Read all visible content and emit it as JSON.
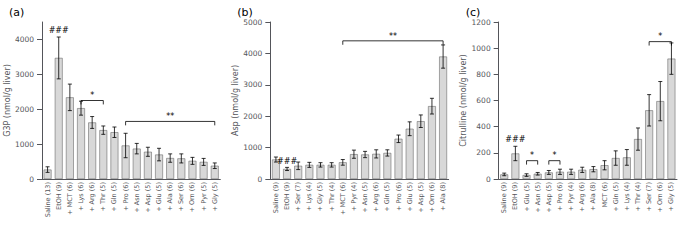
{
  "chart_data": [
    {
      "type": "bar",
      "title": "(a)",
      "ylabel": "G3P (nmol/g liver)",
      "categories": [
        "Saline (13)",
        "EtOH (9)",
        "+ MCT (6)",
        "+ Lys (6)",
        "+ Arg (6)",
        "+ Thr (5)",
        "+ Gln (5)",
        "+ Pro (6)",
        "+ Asn (5)",
        "+ Asp (5)",
        "+ Glu (5)",
        "+ Ala (6)",
        "+ Ser (6)",
        "+ Orn (6)",
        "+ Pyr (5)",
        "+ Gly (5)"
      ],
      "values": [
        270,
        3470,
        2340,
        2030,
        1620,
        1400,
        1340,
        960,
        870,
        780,
        700,
        600,
        590,
        520,
        490,
        380
      ],
      "errors": [
        80,
        600,
        380,
        200,
        170,
        120,
        150,
        350,
        150,
        130,
        180,
        120,
        130,
        100,
        100,
        80
      ],
      "color": "#d8d8d8",
      "ylim": [
        0,
        4500
      ],
      "yticks": [
        0,
        1000,
        2000,
        3000,
        4000
      ],
      "grid": false,
      "annotations": [
        {
          "text": "###",
          "at": "EtOH (9)"
        },
        {
          "text": "*",
          "from": "+ Lys (6)",
          "to": "+ Thr (5)",
          "y": 2250
        },
        {
          "text": "**",
          "from": "+ Pro (6)",
          "to": "+ Gly (5)",
          "y": 1650
        }
      ]
    },
    {
      "type": "bar",
      "title": "(b)",
      "ylabel": "Asp (nmol/g liver)",
      "categories": [
        "Saline (9)",
        "EtOH (9)",
        "+ Ser (7)",
        "+ Lys (4)",
        "+ Gly (5)",
        "+ Thr (4)",
        "+ MCT (6)",
        "+ Pyr (4)",
        "+ Asn (5)",
        "+ Arg (6)",
        "+ Gln (5)",
        "+ Pro (6)",
        "+ Glu (5)",
        "+ Asp (5)",
        "+ Orn (6)",
        "+ Ala (8)"
      ],
      "values": [
        620,
        320,
        420,
        450,
        450,
        450,
        530,
        790,
        780,
        800,
        830,
        1280,
        1600,
        1840,
        2320,
        3900
      ],
      "errors": [
        80,
        50,
        120,
        80,
        70,
        70,
        90,
        130,
        100,
        130,
        100,
        120,
        220,
        200,
        250,
        370
      ],
      "color": "#d8d8d8",
      "ylim": [
        0,
        5000
      ],
      "yticks": [
        0,
        1000,
        2000,
        3000,
        4000,
        5000
      ],
      "grid": false,
      "annotations": [
        {
          "text": "###",
          "at": "EtOH (9)"
        },
        {
          "text": "**",
          "from": "+ MCT (6)",
          "to": "+ Ala (8)",
          "y": 4400
        }
      ]
    },
    {
      "type": "bar",
      "title": "(c)",
      "ylabel": "Citrulline (nmol/g liver)",
      "categories": [
        "Saline (9)",
        "EtOH (9)",
        "+ Glu (5)",
        "+ Asn (5)",
        "+ Asp (5)",
        "+ Pro (6)",
        "+ Pyr (4)",
        "+ Arg (6)",
        "+ Ala (8)",
        "MCT (6)",
        "+ Gln (5)",
        "+ Lys (4)",
        "+ Thr (4)",
        "+ Ser (7)",
        "+ Orn (6)",
        "+ Gly (5)"
      ],
      "values": [
        35,
        195,
        30,
        40,
        50,
        55,
        55,
        70,
        75,
        105,
        160,
        165,
        305,
        525,
        595,
        920
      ],
      "errors": [
        10,
        55,
        10,
        10,
        15,
        20,
        20,
        20,
        20,
        35,
        55,
        60,
        85,
        120,
        150,
        120
      ],
      "color": "#d8d8d8",
      "ylim": [
        0,
        1200
      ],
      "yticks": [
        0,
        200,
        400,
        600,
        800,
        1000,
        1200
      ],
      "grid": false,
      "annotations": [
        {
          "text": "###",
          "at": "EtOH (9)"
        },
        {
          "text": "*",
          "from": "+ Glu (5)",
          "to": "+ Asn (5)",
          "y": 140
        },
        {
          "text": "*",
          "from": "+ Asp (5)",
          "to": "+ Pro (6)",
          "y": 140
        },
        {
          "text": "*",
          "from": "+ Ser (7)",
          "to": "+ Gly (5)",
          "y": 1050
        }
      ]
    }
  ]
}
